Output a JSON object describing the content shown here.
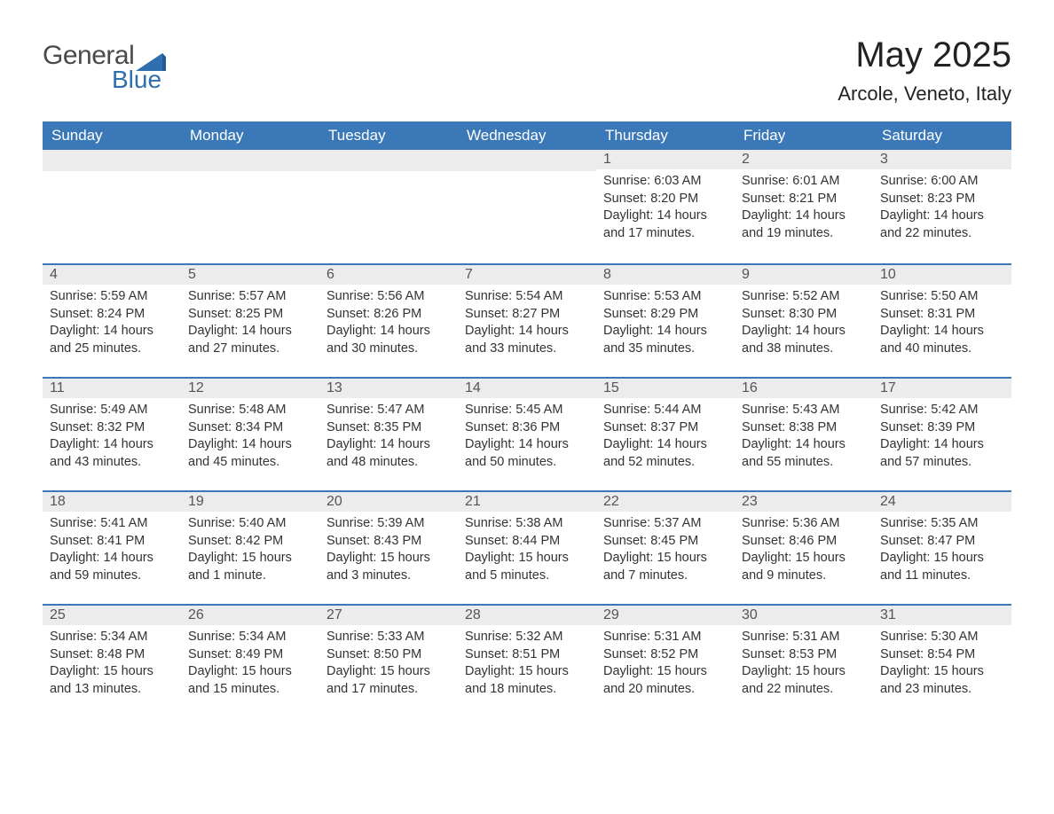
{
  "logo": {
    "text1": "General",
    "text2": "Blue",
    "shape_color": "#2f6fb0"
  },
  "title": "May 2025",
  "location": "Arcole, Veneto, Italy",
  "colors": {
    "header_bg": "#3b78b8",
    "header_text": "#ffffff",
    "daynum_bg": "#ececec",
    "border": "#3b78b8",
    "body_text": "#333333",
    "page_bg": "#ffffff"
  },
  "weekdays": [
    "Sunday",
    "Monday",
    "Tuesday",
    "Wednesday",
    "Thursday",
    "Friday",
    "Saturday"
  ],
  "weeks": [
    [
      null,
      null,
      null,
      null,
      {
        "n": "1",
        "sunrise": "6:03 AM",
        "sunset": "8:20 PM",
        "daylight": "14 hours and 17 minutes."
      },
      {
        "n": "2",
        "sunrise": "6:01 AM",
        "sunset": "8:21 PM",
        "daylight": "14 hours and 19 minutes."
      },
      {
        "n": "3",
        "sunrise": "6:00 AM",
        "sunset": "8:23 PM",
        "daylight": "14 hours and 22 minutes."
      }
    ],
    [
      {
        "n": "4",
        "sunrise": "5:59 AM",
        "sunset": "8:24 PM",
        "daylight": "14 hours and 25 minutes."
      },
      {
        "n": "5",
        "sunrise": "5:57 AM",
        "sunset": "8:25 PM",
        "daylight": "14 hours and 27 minutes."
      },
      {
        "n": "6",
        "sunrise": "5:56 AM",
        "sunset": "8:26 PM",
        "daylight": "14 hours and 30 minutes."
      },
      {
        "n": "7",
        "sunrise": "5:54 AM",
        "sunset": "8:27 PM",
        "daylight": "14 hours and 33 minutes."
      },
      {
        "n": "8",
        "sunrise": "5:53 AM",
        "sunset": "8:29 PM",
        "daylight": "14 hours and 35 minutes."
      },
      {
        "n": "9",
        "sunrise": "5:52 AM",
        "sunset": "8:30 PM",
        "daylight": "14 hours and 38 minutes."
      },
      {
        "n": "10",
        "sunrise": "5:50 AM",
        "sunset": "8:31 PM",
        "daylight": "14 hours and 40 minutes."
      }
    ],
    [
      {
        "n": "11",
        "sunrise": "5:49 AM",
        "sunset": "8:32 PM",
        "daylight": "14 hours and 43 minutes."
      },
      {
        "n": "12",
        "sunrise": "5:48 AM",
        "sunset": "8:34 PM",
        "daylight": "14 hours and 45 minutes."
      },
      {
        "n": "13",
        "sunrise": "5:47 AM",
        "sunset": "8:35 PM",
        "daylight": "14 hours and 48 minutes."
      },
      {
        "n": "14",
        "sunrise": "5:45 AM",
        "sunset": "8:36 PM",
        "daylight": "14 hours and 50 minutes."
      },
      {
        "n": "15",
        "sunrise": "5:44 AM",
        "sunset": "8:37 PM",
        "daylight": "14 hours and 52 minutes."
      },
      {
        "n": "16",
        "sunrise": "5:43 AM",
        "sunset": "8:38 PM",
        "daylight": "14 hours and 55 minutes."
      },
      {
        "n": "17",
        "sunrise": "5:42 AM",
        "sunset": "8:39 PM",
        "daylight": "14 hours and 57 minutes."
      }
    ],
    [
      {
        "n": "18",
        "sunrise": "5:41 AM",
        "sunset": "8:41 PM",
        "daylight": "14 hours and 59 minutes."
      },
      {
        "n": "19",
        "sunrise": "5:40 AM",
        "sunset": "8:42 PM",
        "daylight": "15 hours and 1 minute."
      },
      {
        "n": "20",
        "sunrise": "5:39 AM",
        "sunset": "8:43 PM",
        "daylight": "15 hours and 3 minutes."
      },
      {
        "n": "21",
        "sunrise": "5:38 AM",
        "sunset": "8:44 PM",
        "daylight": "15 hours and 5 minutes."
      },
      {
        "n": "22",
        "sunrise": "5:37 AM",
        "sunset": "8:45 PM",
        "daylight": "15 hours and 7 minutes."
      },
      {
        "n": "23",
        "sunrise": "5:36 AM",
        "sunset": "8:46 PM",
        "daylight": "15 hours and 9 minutes."
      },
      {
        "n": "24",
        "sunrise": "5:35 AM",
        "sunset": "8:47 PM",
        "daylight": "15 hours and 11 minutes."
      }
    ],
    [
      {
        "n": "25",
        "sunrise": "5:34 AM",
        "sunset": "8:48 PM",
        "daylight": "15 hours and 13 minutes."
      },
      {
        "n": "26",
        "sunrise": "5:34 AM",
        "sunset": "8:49 PM",
        "daylight": "15 hours and 15 minutes."
      },
      {
        "n": "27",
        "sunrise": "5:33 AM",
        "sunset": "8:50 PM",
        "daylight": "15 hours and 17 minutes."
      },
      {
        "n": "28",
        "sunrise": "5:32 AM",
        "sunset": "8:51 PM",
        "daylight": "15 hours and 18 minutes."
      },
      {
        "n": "29",
        "sunrise": "5:31 AM",
        "sunset": "8:52 PM",
        "daylight": "15 hours and 20 minutes."
      },
      {
        "n": "30",
        "sunrise": "5:31 AM",
        "sunset": "8:53 PM",
        "daylight": "15 hours and 22 minutes."
      },
      {
        "n": "31",
        "sunrise": "5:30 AM",
        "sunset": "8:54 PM",
        "daylight": "15 hours and 23 minutes."
      }
    ]
  ],
  "labels": {
    "sunrise": "Sunrise:",
    "sunset": "Sunset:",
    "daylight": "Daylight:"
  }
}
